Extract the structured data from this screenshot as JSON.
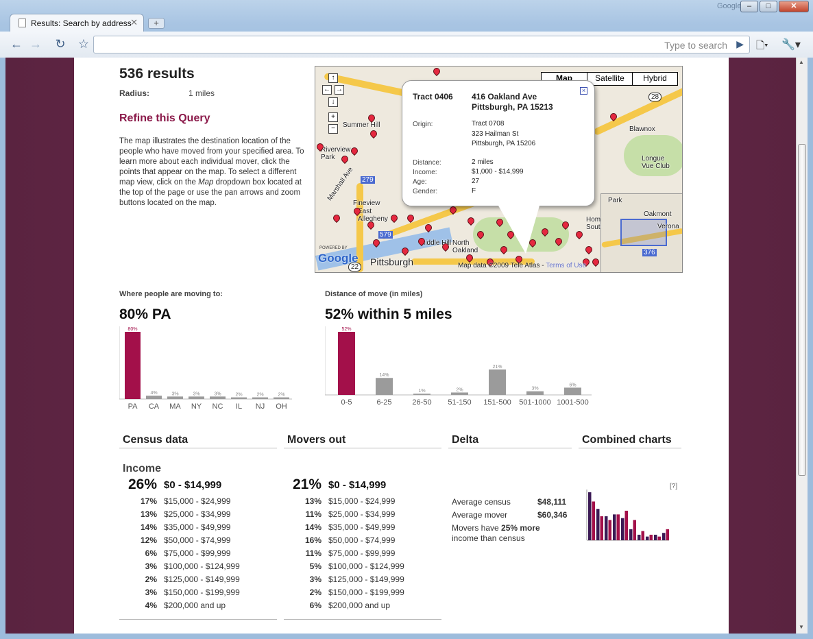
{
  "browser": {
    "watermark": "Google",
    "tab_title": "Results: Search by address",
    "omnibox_hint": "Type to search",
    "window_buttons": [
      "–",
      "□",
      "✕"
    ]
  },
  "results": {
    "count": "536 results",
    "radius_label": "Radius:",
    "radius_value": "1 miles",
    "refine": "Refine this Query",
    "description_pre": "The map illustrates the destination location of the people who have moved from your specified area. To learn more about each individual mover, click the points that appear on the map. To select a different map view, click on the ",
    "description_em": "Map",
    "description_post": " dropdown box located at the top of the page or use the pan arrows and zoom buttons located on the map."
  },
  "map": {
    "types": [
      "Map",
      "Satellite",
      "Hybrid"
    ],
    "labels": [
      "Summer Hill",
      "Riverview Park",
      "Fineview",
      "East Allegheny",
      "Pittsburgh",
      "Middle Hill",
      "North Oakland",
      "Blawnox",
      "Longue Vue Club",
      "Park",
      "Oakmont",
      "Verona",
      "Homewood South",
      "Marshall Ave",
      "279",
      "579",
      "28",
      "22",
      "376"
    ],
    "copyright": "Map data ©2009 Tele Atlas - ",
    "terms": "Terms of Use",
    "powered_by": "POWERED BY",
    "logo": "Google",
    "infowindow": {
      "tract": "Tract 0406",
      "address_line1": "416 Oakland Ave",
      "address_line2": "Pittsburgh, PA 15213",
      "origin_label": "Origin:",
      "origin_line1": "Tract 0708",
      "origin_line2": "323 Hailman St",
      "origin_line3": "Pittsburgh, PA 15206",
      "distance_label": "Distance:",
      "distance": "2 miles",
      "income_label": "Income:",
      "income": "$1,000 - $14,999",
      "age_label": "Age:",
      "age": "27",
      "gender_label": "Gender:",
      "gender": "F",
      "close": "×"
    }
  },
  "chart_data": [
    {
      "type": "bar",
      "subtitle": "Where people are moving to:",
      "title": "80% PA",
      "categories": [
        "PA",
        "CA",
        "MA",
        "NY",
        "NC",
        "IL",
        "NJ",
        "OH"
      ],
      "values": [
        80,
        4,
        3,
        3,
        3,
        2,
        2,
        2
      ],
      "labels": [
        "80%",
        "4%",
        "3%",
        "3%",
        "3%",
        "2%",
        "2%",
        "2%"
      ],
      "ylim": [
        0,
        80
      ],
      "colors": {
        "highlight": "#a3104a",
        "other": "#9b9b9b"
      }
    },
    {
      "type": "bar",
      "subtitle": "Distance of move (in miles)",
      "title": "52% within 5 miles",
      "categories": [
        "0-5",
        "6-25",
        "26-50",
        "51-150",
        "151-500",
        "501-1000",
        "1001-500"
      ],
      "values": [
        52,
        14,
        1,
        2,
        21,
        3,
        6
      ],
      "labels": [
        "52%",
        "14%",
        "1%",
        "2%",
        "21%",
        "3%",
        "6%"
      ],
      "ylim": [
        0,
        52
      ],
      "colors": {
        "highlight": "#a3104a",
        "other": "#9b9b9b"
      }
    },
    {
      "type": "bar",
      "title": "Combined charts",
      "categories": [
        "$0 - $14,999",
        "$15,000 - $24,999",
        "$25,000 - $34,999",
        "$35,000 - $49,999",
        "$50,000 - $74,999",
        "$75,000 - $99,999",
        "$100,000 - $124,999",
        "$125,000 - $149,999",
        "$150,000 - $199,999",
        "$200,000 and up"
      ],
      "series": [
        {
          "name": "Census data",
          "values": [
            26,
            17,
            13,
            14,
            12,
            6,
            3,
            2,
            3,
            4
          ],
          "color": "#3b1a55"
        },
        {
          "name": "Movers out",
          "values": [
            21,
            13,
            11,
            14,
            16,
            11,
            5,
            3,
            2,
            6
          ],
          "color": "#a3104a"
        }
      ],
      "ylim": [
        0,
        26
      ]
    }
  ],
  "columns": {
    "census": "Census data",
    "movers": "Movers out",
    "delta": "Delta",
    "combined": "Combined charts"
  },
  "income": {
    "title": "Income",
    "census": [
      {
        "pct": "26%",
        "range": "$0 - $14,999"
      },
      {
        "pct": "17%",
        "range": "$15,000 - $24,999"
      },
      {
        "pct": "13%",
        "range": "$25,000 - $34,999"
      },
      {
        "pct": "14%",
        "range": "$35,000 - $49,999"
      },
      {
        "pct": "12%",
        "range": "$50,000 - $74,999"
      },
      {
        "pct": "6%",
        "range": "$75,000 - $99,999"
      },
      {
        "pct": "3%",
        "range": "$100,000 - $124,999"
      },
      {
        "pct": "2%",
        "range": "$125,000 - $149,999"
      },
      {
        "pct": "3%",
        "range": "$150,000 - $199,999"
      },
      {
        "pct": "4%",
        "range": "$200,000 and up"
      }
    ],
    "movers": [
      {
        "pct": "21%",
        "range": "$0 - $14,999"
      },
      {
        "pct": "13%",
        "range": "$15,000 - $24,999"
      },
      {
        "pct": "11%",
        "range": "$25,000 - $34,999"
      },
      {
        "pct": "14%",
        "range": "$35,000 - $49,999"
      },
      {
        "pct": "16%",
        "range": "$50,000 - $74,999"
      },
      {
        "pct": "11%",
        "range": "$75,000 - $99,999"
      },
      {
        "pct": "5%",
        "range": "$100,000 - $124,999"
      },
      {
        "pct": "3%",
        "range": "$125,000 - $149,999"
      },
      {
        "pct": "2%",
        "range": "$150,000 - $199,999"
      },
      {
        "pct": "6%",
        "range": "$200,000 and up"
      }
    ]
  },
  "delta": {
    "avg_census_label": "Average census",
    "avg_census": "$48,111",
    "avg_mover_label": "Average mover",
    "avg_mover": "$60,346",
    "summary_pre": "Movers have ",
    "summary_bold": "25% more",
    "summary_post": "income than census"
  },
  "help": "[?]"
}
